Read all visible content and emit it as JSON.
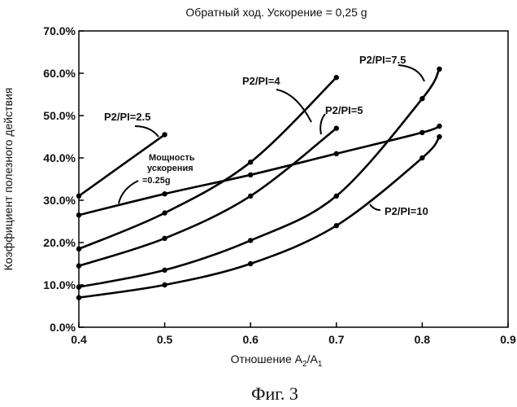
{
  "chart_data": {
    "type": "line",
    "title": "Обратный ход. Ускорение = 0,25 g",
    "xlabel": "Отношение A",
    "xlabel_sub1": "2",
    "xlabel_mid": "/A",
    "xlabel_sub2": "1",
    "ylabel": "Коэффициент полезного действия",
    "xlim": [
      0.4,
      0.9
    ],
    "ylim": [
      0,
      70
    ],
    "x_ticks": [
      "0.4",
      "0.5",
      "0.6",
      "0.7",
      "0.8",
      "0.9"
    ],
    "y_ticks": [
      "0.0%",
      "10.0%",
      "20.0%",
      "30.0%",
      "40.0%",
      "50.0%",
      "60.0%",
      "70.0%"
    ],
    "series": [
      {
        "name": "P2/PI=2.5",
        "x": [
          0.4,
          0.5
        ],
        "y": [
          31.0,
          45.5
        ]
      },
      {
        "name": "P2/PI=4",
        "x": [
          0.4,
          0.5,
          0.6,
          0.7
        ],
        "y": [
          18.5,
          27.0,
          39.0,
          59.0
        ]
      },
      {
        "name": "P2/PI=5",
        "x": [
          0.4,
          0.5,
          0.6,
          0.7
        ],
        "y": [
          14.5,
          21.0,
          31.0,
          47.0
        ]
      },
      {
        "name": "P2/PI=7.5",
        "x": [
          0.4,
          0.5,
          0.6,
          0.7,
          0.8,
          0.82
        ],
        "y": [
          9.5,
          13.5,
          20.5,
          31.0,
          54.0,
          61.0
        ]
      },
      {
        "name": "P2/PI=10",
        "x": [
          0.4,
          0.5,
          0.6,
          0.7,
          0.8,
          0.82
        ],
        "y": [
          7.0,
          10.0,
          15.0,
          24.0,
          40.0,
          45.0
        ]
      },
      {
        "name": "Мощность ускорения =0.25g",
        "x": [
          0.4,
          0.5,
          0.6,
          0.7,
          0.8,
          0.82
        ],
        "y": [
          26.5,
          31.5,
          36.0,
          41.0,
          46.0,
          47.5
        ]
      }
    ],
    "annotations": {
      "p25": "P2/PI=2.5",
      "p4": "P2/PI=4",
      "p5": "P2/PI=5",
      "p75": "P2/PI=7.5",
      "p10": "P2/PI=10",
      "power_line1": "Мощность",
      "power_line2": "ускорения",
      "power_line3": "=0.25g"
    },
    "grid": false,
    "legend": "none"
  },
  "caption": "Фиг. 3"
}
